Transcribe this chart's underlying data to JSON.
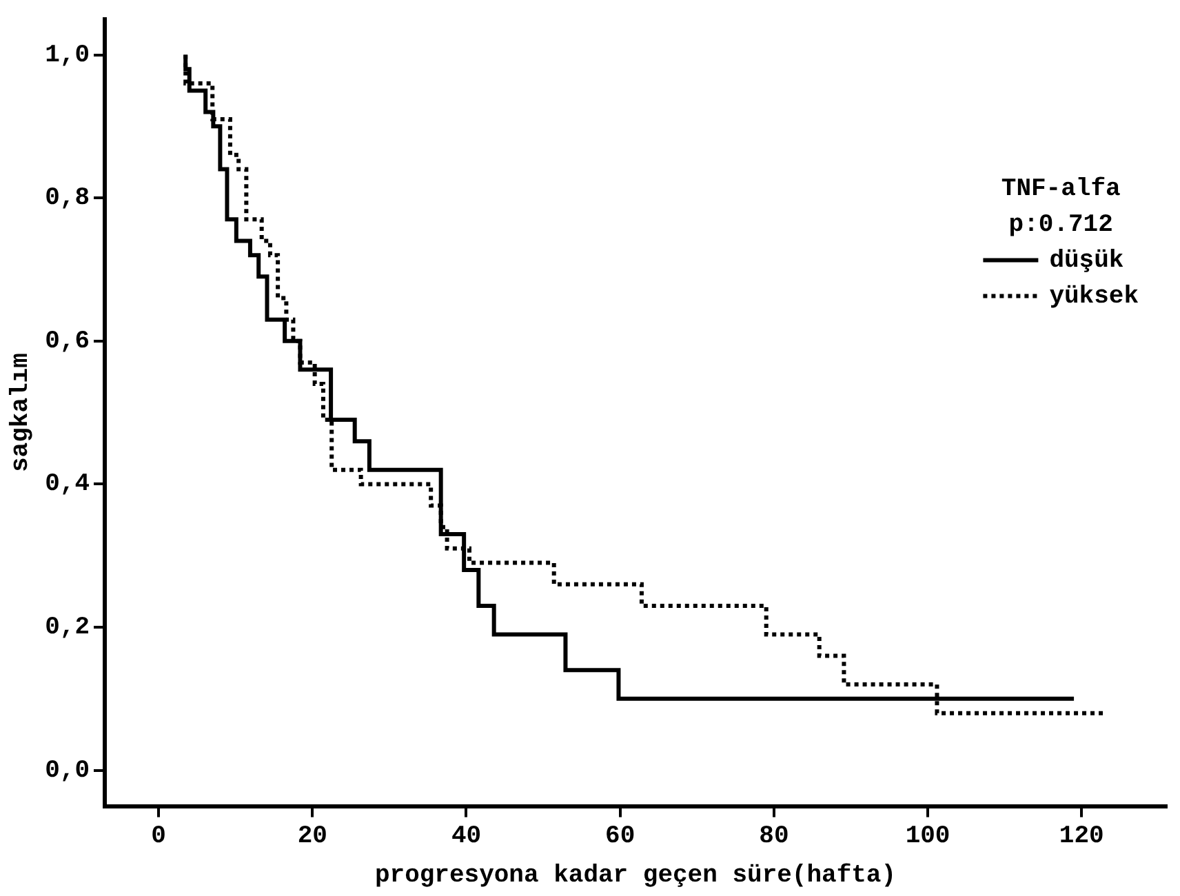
{
  "chart_data": {
    "type": "step",
    "xlabel": "progresyona kadar geçen süre(hafta)",
    "ylabel": "sagkalım",
    "legend_title": "TNF-alfa",
    "annotations": [
      "p:0.712"
    ],
    "xlim": [
      -7,
      131
    ],
    "xticks": [
      0,
      20,
      40,
      60,
      80,
      100,
      120
    ],
    "ylim": [
      -0.05,
      1.05
    ],
    "yticks": [
      {
        "value": 0,
        "label": "0,0"
      },
      {
        "value": 0.2,
        "label": "0,2"
      },
      {
        "value": 0.4,
        "label": "0,4"
      },
      {
        "value": 0.6,
        "label": "0,6"
      },
      {
        "value": 0.8,
        "label": "0,8"
      },
      {
        "value": 1,
        "label": "1,0"
      }
    ],
    "grid": false,
    "legend": "top right",
    "marker": "none",
    "series": [
      {
        "name": "düşük",
        "color": "#000000",
        "line_style": "solid",
        "x": [
          3.5,
          4,
          6.1,
          7.1,
          8,
          8.9,
          10.1,
          11.9,
          13,
          14.1,
          16.4,
          18.4,
          22.4,
          25.5,
          27.4,
          36.7,
          39.7,
          41.6,
          43.6,
          52.9,
          59.8,
          66,
          119
        ],
        "values": [
          1,
          0.98,
          0.95,
          0.92,
          0.9,
          0.84,
          0.77,
          0.74,
          0.72,
          0.69,
          0.63,
          0.6,
          0.56,
          0.49,
          0.46,
          0.42,
          0.33,
          0.28,
          0.23,
          0.19,
          0.14,
          0.1,
          0.1
        ]
      },
      {
        "name": "yüksek",
        "color": "#000000",
        "line_style": "dotted",
        "x": [
          3.5,
          7,
          9.3,
          10.4,
          11.4,
          13.4,
          14.5,
          15.5,
          16.6,
          17.5,
          18.4,
          20.3,
          21.4,
          22.5,
          26.3,
          35.4,
          36.7,
          37.5,
          40.4,
          51.4,
          62.8,
          79,
          85.9,
          89.1,
          101.2,
          114.2,
          123.3
        ],
        "values": [
          1,
          0.96,
          0.91,
          0.86,
          0.84,
          0.77,
          0.74,
          0.72,
          0.66,
          0.63,
          0.6,
          0.57,
          0.54,
          0.49,
          0.42,
          0.4,
          0.37,
          0.34,
          0.31,
          0.29,
          0.26,
          0.23,
          0.19,
          0.16,
          0.12,
          0.08,
          0.08
        ]
      }
    ]
  }
}
